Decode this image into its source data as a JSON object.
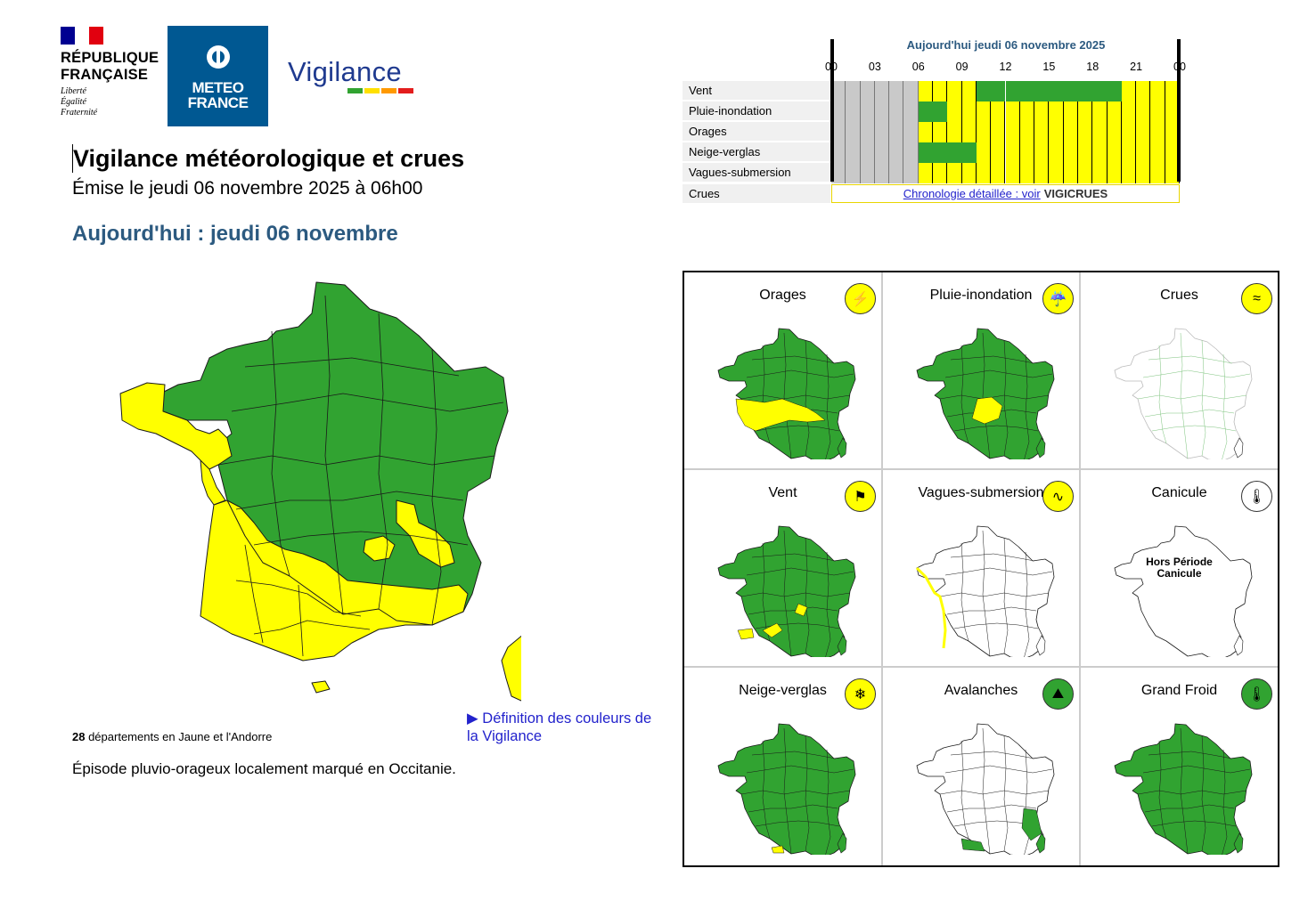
{
  "header": {
    "republique_lines": [
      "RÉPUBLIQUE",
      "FRANÇAISE"
    ],
    "motto_lines": [
      "Liberté",
      "Égalité",
      "Fraternité"
    ],
    "meteo_lines": [
      "METEO",
      "FRANCE"
    ],
    "vigilance_word": "Vigilance"
  },
  "colors": {
    "green": "#31a331",
    "yellow": "#ffff00",
    "orange": "#ff9900",
    "red": "#e31d1d",
    "grey": "#c9c9c9",
    "title_blue": "#2c5a80",
    "link_blue": "#2222cc",
    "flag_blue": "#000091",
    "flag_red": "#e1000f",
    "brand_blue": "#005892",
    "vigilance_blue": "#1f3a8f"
  },
  "main": {
    "title": "Vigilance météorologique et crues",
    "emission": "Émise le jeudi 06 novembre 2025 à 06h00",
    "today": "Aujourd'hui : jeudi 06 novembre",
    "count_number": "28",
    "count_text": " départements en Jaune et l'Andorre",
    "definition_link": "▶ Définition des couleurs de la Vigilance",
    "episode": "Épisode pluvio-orageux localement marqué en Occitanie."
  },
  "timeline": {
    "title": "Aujourd'hui jeudi 06 novembre 2025",
    "hours": [
      "00",
      "03",
      "06",
      "09",
      "12",
      "15",
      "18",
      "21",
      "00"
    ],
    "rows": [
      {
        "label": "Vent",
        "segments": [
          {
            "from": 0,
            "to": 6,
            "level": "grey"
          },
          {
            "from": 6,
            "to": 10,
            "level": "yellow"
          },
          {
            "from": 10,
            "to": 20,
            "level": "green"
          },
          {
            "from": 20,
            "to": 24,
            "level": "yellow"
          }
        ]
      },
      {
        "label": "Pluie-inondation",
        "segments": [
          {
            "from": 0,
            "to": 6,
            "level": "grey"
          },
          {
            "from": 6,
            "to": 8,
            "level": "green"
          },
          {
            "from": 8,
            "to": 24,
            "level": "yellow"
          }
        ]
      },
      {
        "label": "Orages",
        "segments": [
          {
            "from": 0,
            "to": 6,
            "level": "grey"
          },
          {
            "from": 6,
            "to": 24,
            "level": "yellow"
          }
        ]
      },
      {
        "label": "Neige-verglas",
        "segments": [
          {
            "from": 0,
            "to": 6,
            "level": "grey"
          },
          {
            "from": 6,
            "to": 10,
            "level": "green"
          },
          {
            "from": 10,
            "to": 24,
            "level": "yellow"
          }
        ]
      },
      {
        "label": "Vagues-submersion",
        "segments": [
          {
            "from": 0,
            "to": 6,
            "level": "grey"
          },
          {
            "from": 6,
            "to": 24,
            "level": "yellow"
          }
        ]
      }
    ],
    "crues_label": "Crues",
    "crues_link": "Chronologie détaillée : voir",
    "vigicrues": "VIGICRUES"
  },
  "small_maps": [
    {
      "title": "Orages",
      "icon": "lightning-icon",
      "icon_level": "yellow",
      "map": "green-south-yellow"
    },
    {
      "title": "Pluie-inondation",
      "icon": "rain-flood-icon",
      "icon_level": "yellow",
      "map": "green-small-yellow"
    },
    {
      "title": "Crues",
      "icon": "flood-waves-icon",
      "icon_level": "yellow",
      "map": "rivers"
    },
    {
      "title": "Vent",
      "icon": "windsock-icon",
      "icon_level": "yellow",
      "map": "green-scattered-yellow"
    },
    {
      "title": "Vagues-submersion",
      "icon": "wave-icon",
      "icon_level": "yellow",
      "map": "white-coast"
    },
    {
      "title": "Canicule",
      "icon": "thermometer-icon",
      "icon_level": "white",
      "map": "outline",
      "note_lines": [
        "Hors Période",
        "Canicule"
      ]
    },
    {
      "title": "Neige-verglas",
      "icon": "snow-ice-icon",
      "icon_level": "yellow",
      "map": "green-tiny-yellow"
    },
    {
      "title": "Avalanches",
      "icon": "avalanche-icon",
      "icon_level": "green",
      "map": "white-mountains"
    },
    {
      "title": "Grand Froid",
      "icon": "cold-thermometer-icon",
      "icon_level": "green",
      "map": "green"
    }
  ]
}
